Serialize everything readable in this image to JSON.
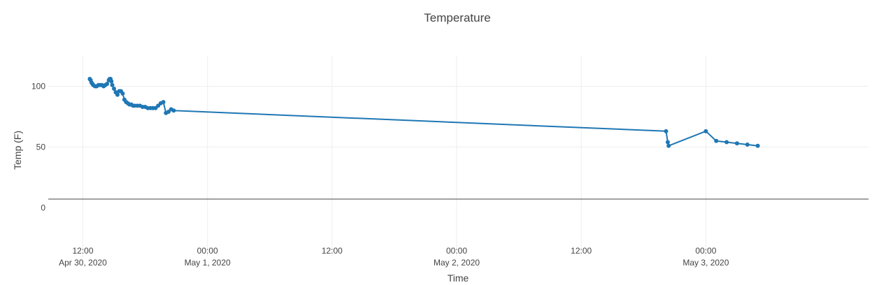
{
  "chart_data": {
    "type": "line",
    "title": "Temperature",
    "xlabel": "Time",
    "ylabel": "Temp (F)",
    "xlim": [
      "2020-04-30T08:40",
      "2020-05-03T15:40"
    ],
    "ylim": [
      -40,
      125
    ],
    "grid": true,
    "legend": "none",
    "x_ticks": [
      {
        "t": "2020-04-30T12:00",
        "line1": "12:00",
        "line2": "Apr 30, 2020"
      },
      {
        "t": "2020-05-01T00:00",
        "line1": "00:00",
        "line2": "May 1, 2020"
      },
      {
        "t": "2020-05-01T12:00",
        "line1": "12:00",
        "line2": ""
      },
      {
        "t": "2020-05-02T00:00",
        "line1": "00:00",
        "line2": "May 2, 2020"
      },
      {
        "t": "2020-05-02T12:00",
        "line1": "12:00",
        "line2": ""
      },
      {
        "t": "2020-05-03T00:00",
        "line1": "00:00",
        "line2": "May 3, 2020"
      }
    ],
    "y_ticks": [
      0,
      50,
      100
    ],
    "colors": {
      "series": "#1f77b4"
    },
    "series": [
      {
        "x": [
          "2020-04-30T12:40",
          "2020-04-30T12:45",
          "2020-04-30T12:50",
          "2020-04-30T12:55",
          "2020-04-30T13:00",
          "2020-04-30T13:10",
          "2020-04-30T13:20",
          "2020-04-30T13:30",
          "2020-04-30T13:40",
          "2020-04-30T13:50",
          "2020-04-30T14:00",
          "2020-04-30T14:10",
          "2020-04-30T14:20",
          "2020-04-30T14:30",
          "2020-04-30T14:35",
          "2020-04-30T14:40",
          "2020-04-30T14:45",
          "2020-04-30T14:50",
          "2020-04-30T15:00",
          "2020-04-30T15:10",
          "2020-04-30T15:20",
          "2020-04-30T15:30",
          "2020-04-30T15:40",
          "2020-04-30T15:50",
          "2020-04-30T16:00",
          "2020-04-30T16:10",
          "2020-04-30T16:20",
          "2020-04-30T16:30",
          "2020-04-30T16:40",
          "2020-04-30T16:50",
          "2020-04-30T17:00",
          "2020-04-30T17:15",
          "2020-04-30T17:30",
          "2020-04-30T17:45",
          "2020-04-30T18:00",
          "2020-04-30T18:15",
          "2020-04-30T18:30",
          "2020-04-30T18:45",
          "2020-04-30T19:00",
          "2020-04-30T19:15",
          "2020-04-30T19:30",
          "2020-04-30T19:45",
          "2020-04-30T20:00",
          "2020-04-30T20:15",
          "2020-04-30T20:30",
          "2020-04-30T20:45",
          "2020-05-02T20:10",
          "2020-05-02T20:20",
          "2020-05-02T20:25",
          "2020-05-03T00:00",
          "2020-05-03T01:00",
          "2020-05-03T02:00",
          "2020-05-03T03:00",
          "2020-05-03T04:00",
          "2020-05-03T05:00"
        ],
        "y": [
          106,
          105,
          103,
          102,
          101,
          100,
          100,
          101,
          101,
          101,
          100,
          101,
          102,
          105,
          106,
          106,
          104,
          101,
          98,
          95,
          93,
          96,
          96,
          94,
          89,
          87,
          86,
          85,
          85,
          84,
          84,
          84,
          84,
          83,
          83,
          82,
          82,
          82,
          82,
          84,
          86,
          87,
          78,
          79,
          81,
          80,
          63,
          54,
          51,
          63,
          55,
          54,
          53,
          52,
          51
        ]
      }
    ]
  }
}
